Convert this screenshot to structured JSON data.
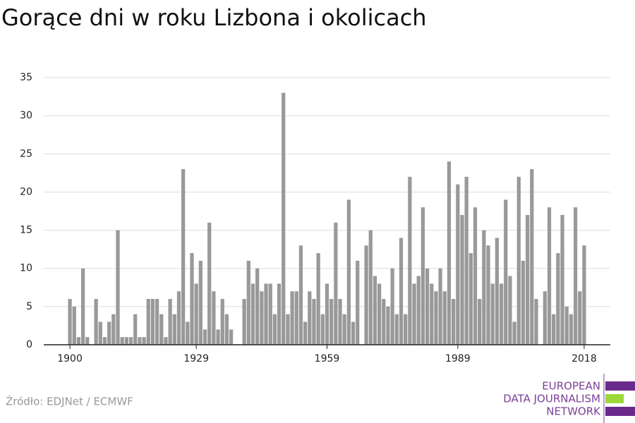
{
  "chart_data": {
    "type": "bar",
    "title": "Gorące dni w roku Lizbona i okolicach",
    "source": "Źródło: EDJNet / ECMWF",
    "color": "#999999",
    "grid": true,
    "x": [
      1900,
      1901,
      1902,
      1903,
      1904,
      1905,
      1906,
      1907,
      1908,
      1909,
      1910,
      1911,
      1912,
      1913,
      1914,
      1915,
      1916,
      1917,
      1918,
      1919,
      1920,
      1921,
      1922,
      1923,
      1924,
      1925,
      1926,
      1927,
      1928,
      1929,
      1930,
      1931,
      1932,
      1933,
      1934,
      1935,
      1936,
      1937,
      1938,
      1939,
      1940,
      1941,
      1942,
      1943,
      1944,
      1945,
      1946,
      1947,
      1948,
      1949,
      1950,
      1951,
      1952,
      1953,
      1954,
      1955,
      1956,
      1957,
      1958,
      1959,
      1960,
      1961,
      1962,
      1963,
      1964,
      1965,
      1966,
      1967,
      1968,
      1969,
      1970,
      1971,
      1972,
      1973,
      1974,
      1975,
      1976,
      1977,
      1978,
      1979,
      1980,
      1981,
      1982,
      1983,
      1984,
      1985,
      1986,
      1987,
      1988,
      1989,
      1990,
      1991,
      1992,
      1993,
      1994,
      1995,
      1996,
      1997,
      1998,
      1999,
      2000,
      2001,
      2002,
      2003,
      2004,
      2005,
      2006,
      2007,
      2008,
      2009,
      2010,
      2011,
      2012,
      2013,
      2014,
      2015,
      2016,
      2017,
      2018
    ],
    "values": [
      6,
      5,
      1,
      10,
      1,
      0,
      6,
      3,
      1,
      3,
      4,
      15,
      1,
      1,
      1,
      4,
      1,
      1,
      6,
      6,
      6,
      4,
      1,
      6,
      4,
      7,
      23,
      3,
      12,
      8,
      11,
      2,
      16,
      7,
      2,
      6,
      4,
      2,
      0,
      0,
      6,
      11,
      8,
      10,
      7,
      8,
      8,
      4,
      8,
      33,
      4,
      7,
      7,
      13,
      3,
      7,
      6,
      12,
      4,
      8,
      6,
      16,
      6,
      4,
      19,
      3,
      11,
      0,
      13,
      15,
      9,
      8,
      6,
      5,
      10,
      4,
      14,
      4,
      22,
      8,
      9,
      18,
      10,
      8,
      7,
      10,
      7,
      24,
      6,
      21,
      17,
      22,
      12,
      18,
      6,
      15,
      13,
      8,
      14,
      8,
      19,
      9,
      3,
      22,
      11,
      17,
      23,
      6,
      0,
      7,
      18,
      4,
      12,
      17,
      5,
      4,
      18,
      7,
      13
    ],
    "xlim": [
      1894,
      2024
    ],
    "xticks": [
      1900,
      1929,
      1959,
      1989,
      2018
    ],
    "ylim": [
      0,
      35
    ],
    "yticks": [
      0,
      5,
      10,
      15,
      20,
      25,
      30,
      35
    ]
  },
  "logo": [
    "EUROPEAN",
    "DATA JOURNALISM",
    "NETWORK"
  ]
}
